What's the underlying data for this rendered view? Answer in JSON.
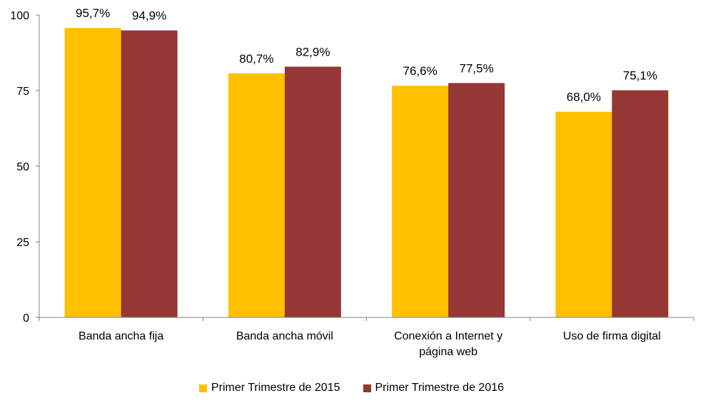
{
  "chart_data": {
    "type": "bar",
    "categories": [
      [
        "Banda ancha fija"
      ],
      [
        "Banda ancha móvil"
      ],
      [
        "Conexión a Internet y",
        "página web"
      ],
      [
        "Uso de firma digital"
      ]
    ],
    "series": [
      {
        "name": "Primer Trimestre de 2015",
        "color": "#FFC000",
        "values": [
          95.7,
          80.7,
          76.6,
          68.0
        ],
        "labels": [
          "95,7%",
          "80,7%",
          "76,6%",
          "68,0%"
        ]
      },
      {
        "name": "Primer Trimestre de 2016",
        "color": "#953735",
        "values": [
          94.9,
          82.9,
          77.5,
          75.1
        ],
        "labels": [
          "94,9%",
          "82,9%",
          "77,5%",
          "75,1%"
        ]
      }
    ],
    "yticks": [
      0,
      25,
      50,
      75,
      100
    ],
    "ylim": [
      0,
      100
    ],
    "title": "",
    "xlabel": "",
    "ylabel": "",
    "grid": false,
    "legend_position": "bottom"
  }
}
